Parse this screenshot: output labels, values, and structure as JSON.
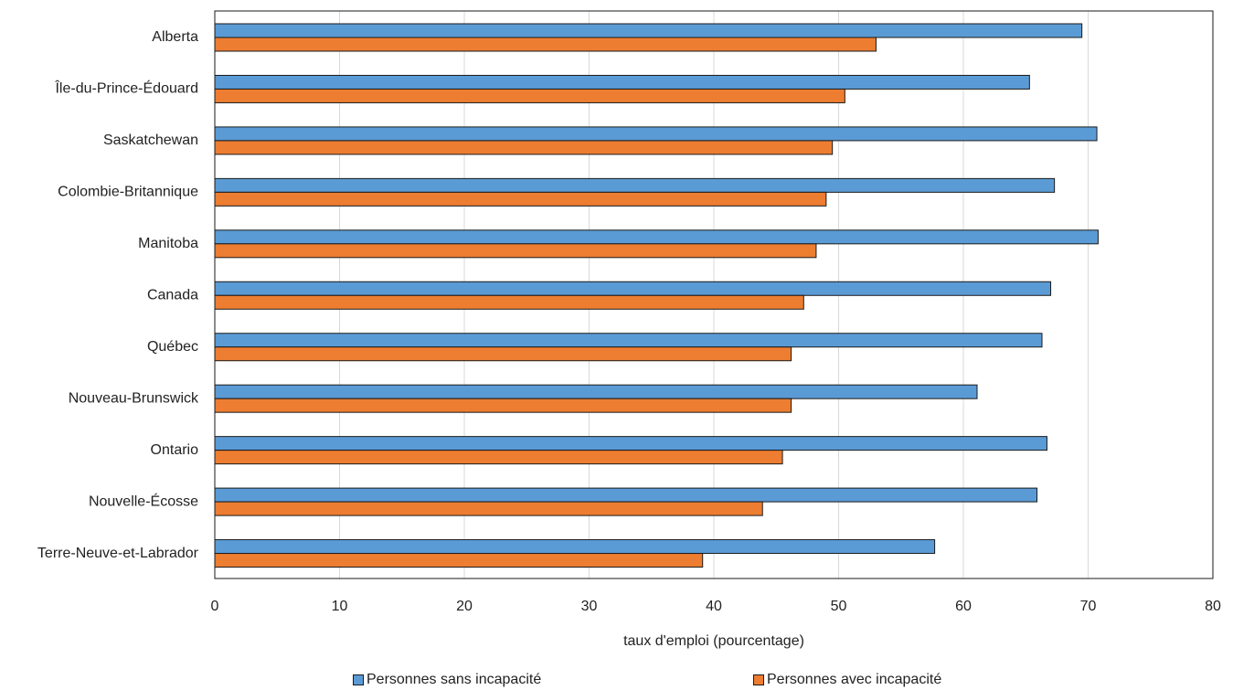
{
  "chart_data": {
    "type": "bar",
    "orientation": "horizontal",
    "categories": [
      "Alberta",
      "Île-du-Prince-Édouard",
      "Saskatchewan",
      "Colombie-Britannique",
      "Manitoba",
      "Canada",
      "Québec",
      "Nouveau-Brunswick",
      "Ontario",
      "Nouvelle-Écosse",
      "Terre-Neuve-et-Labrador"
    ],
    "series": [
      {
        "name": "Personnes sans incapacité",
        "color": "#5b9bd5",
        "values": [
          69.5,
          65.3,
          70.7,
          67.3,
          70.8,
          67.0,
          66.3,
          61.1,
          66.7,
          65.9,
          57.7
        ]
      },
      {
        "name": "Personnes avec incapacité",
        "color": "#ed7d31",
        "values": [
          53.0,
          50.5,
          49.5,
          49.0,
          48.2,
          47.2,
          46.2,
          46.2,
          45.5,
          43.9,
          39.1
        ]
      }
    ],
    "xlabel": "taux d'emploi (pourcentage)",
    "ylabel": "",
    "xlim": [
      0,
      80
    ],
    "xticks": [
      0,
      10,
      20,
      30,
      40,
      50,
      60,
      70,
      80
    ],
    "grid": "vertical",
    "legend": "bottom"
  }
}
